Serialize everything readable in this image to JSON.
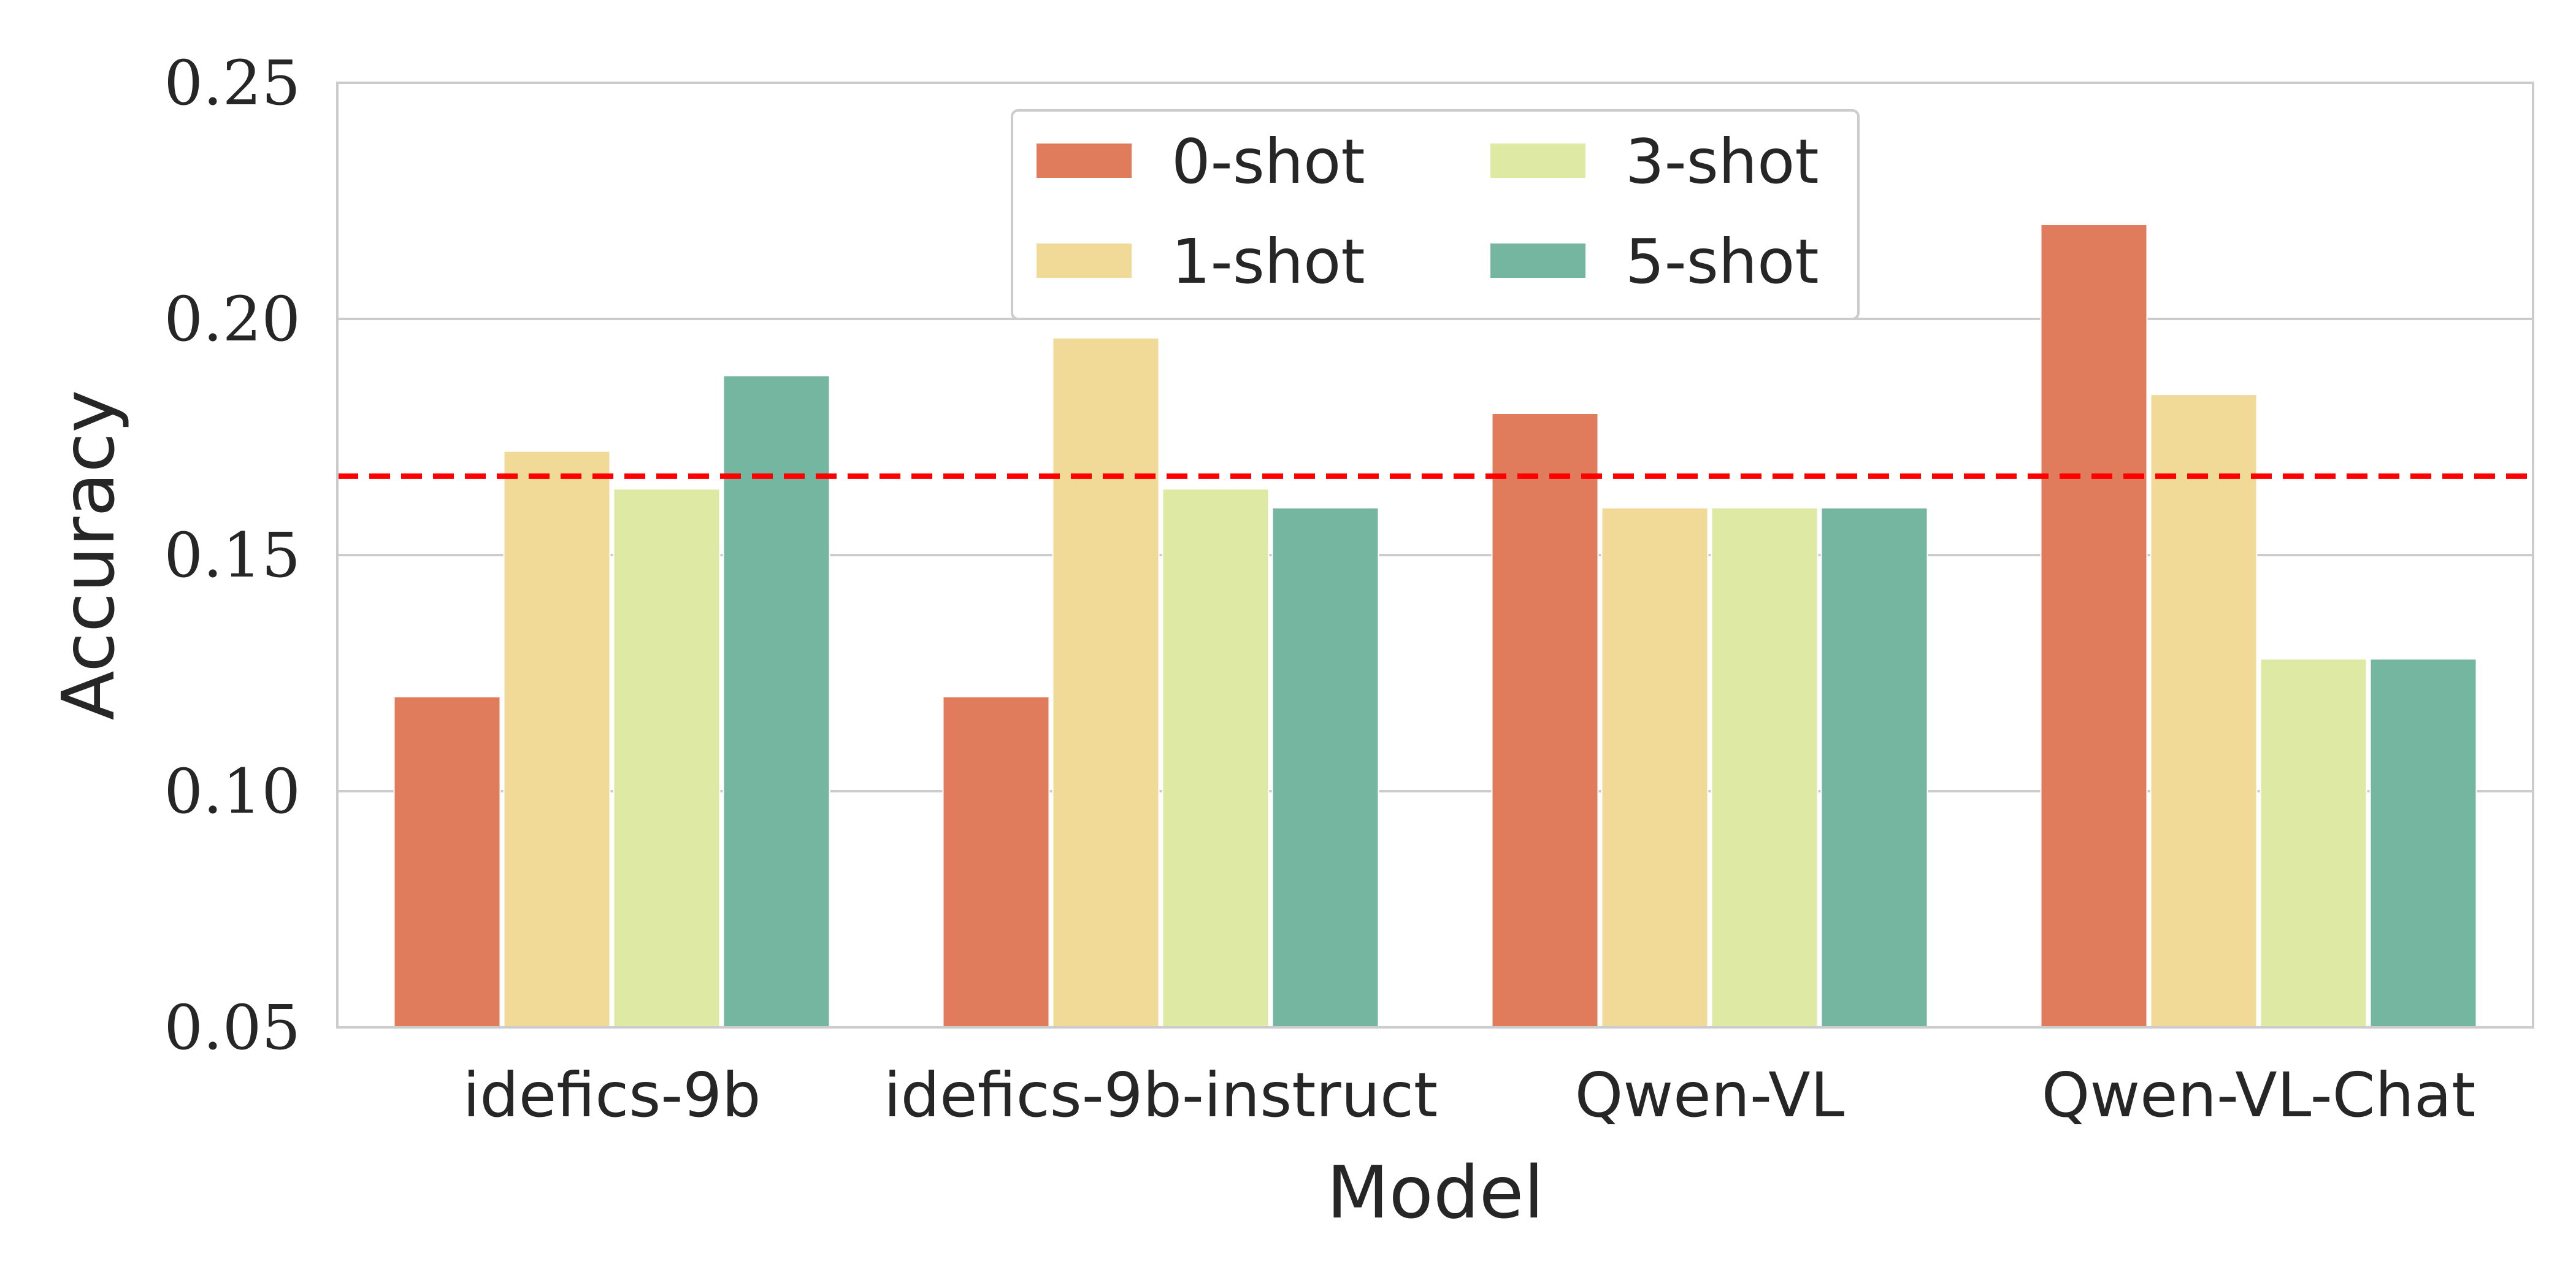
{
  "chart_data": {
    "type": "bar",
    "title": "",
    "xlabel": "Model",
    "ylabel": "Accuracy",
    "categories": [
      "idefics-9b",
      "idefics-9b-instruct",
      "Qwen-VL",
      "Qwen-VL-Chat"
    ],
    "series": [
      {
        "name": "0-shot",
        "color": "#e07b5c",
        "values": [
          0.12,
          0.12,
          0.18,
          0.22
        ]
      },
      {
        "name": "1-shot",
        "color": "#f1d998",
        "values": [
          0.172,
          0.196,
          0.16,
          0.184
        ]
      },
      {
        "name": "3-shot",
        "color": "#dee9a4",
        "values": [
          0.164,
          0.164,
          0.16,
          0.128
        ]
      },
      {
        "name": "5-shot",
        "color": "#75b6a1",
        "values": [
          0.188,
          0.16,
          0.16,
          0.128
        ]
      }
    ],
    "ylim": [
      0.05,
      0.25
    ],
    "yticks": [
      0.05,
      0.1,
      0.15,
      0.2,
      0.25
    ],
    "ytick_labels": [
      "0.05",
      "0.10",
      "0.15",
      "0.20",
      "0.25"
    ],
    "reference_line": {
      "value": 0.1667,
      "color": "#ff0000",
      "style": "dashed"
    },
    "grid": "horizontal",
    "legend": {
      "position": "top-center",
      "columns": 2
    }
  }
}
